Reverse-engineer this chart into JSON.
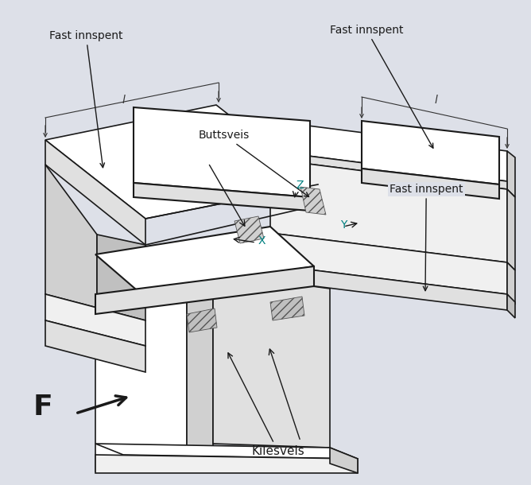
{
  "background_color": "#dde0e8",
  "line_color": "#1a1a1a",
  "labels": {
    "fast_innspent_tl": "Fast innspent",
    "fast_innspent_tr": "Fast innspent",
    "fast_innspent_r": "Fast innspent",
    "buttsveis": "Buttsveis",
    "kilesveis": "Kilesveis",
    "F": "F",
    "X": "X",
    "Y": "Y",
    "Z": "Z",
    "l_left": "l",
    "l_right": "l"
  },
  "label_color_teal": "#008080",
  "label_color_black": "#1a1a1a"
}
